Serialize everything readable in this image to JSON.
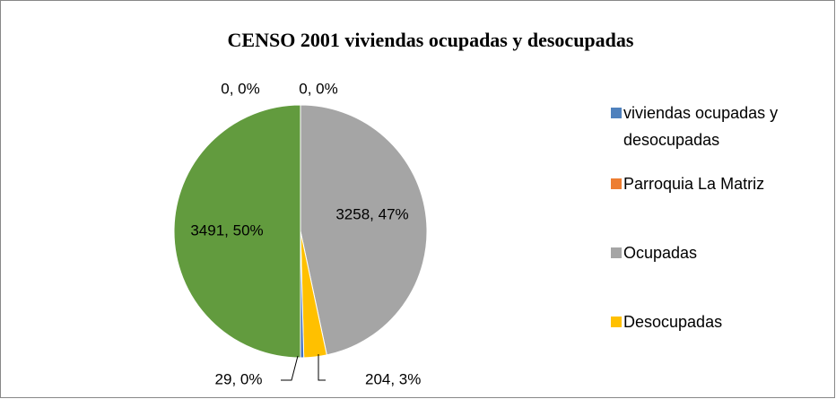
{
  "chart_data": {
    "type": "pie",
    "title": "CENSO 2001 viviendas ocupadas y desocupadas",
    "categories": [
      "viviendas ocupadas y desocupadas",
      "Parroquia La Matriz",
      "Ocupadas",
      "Desocupadas",
      null,
      null
    ],
    "values": [
      0,
      0,
      3258,
      204,
      29,
      3491
    ],
    "value_labels": [
      "0, 0%",
      "0, 0%",
      "3258, 47%",
      "204, 3%",
      "29, 0%",
      "3491, 50%"
    ],
    "colors": [
      "#4f81bd",
      "#ed7d31",
      "#a5a5a5",
      "#ffc000",
      "#4472c4",
      "#629b3e"
    ]
  }
}
